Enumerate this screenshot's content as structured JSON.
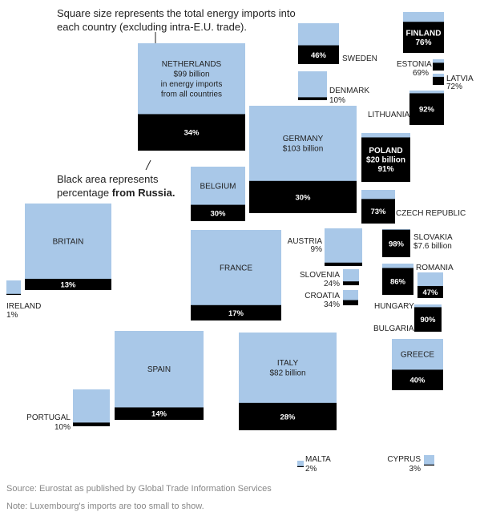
{
  "annotations": {
    "size_note": "Square size represents the total energy imports into each country (excluding intra-E.U. trade).",
    "black_note_prefix": "Black area represents percentage",
    "black_note_bold": "from Russia."
  },
  "source": "Source: Eurostat as published by Global Trade Information Services",
  "note": "Note: Luxembourg's imports are too small to show.",
  "colors": {
    "total": "#a9c8e8",
    "russia": "#000000",
    "label_on_dark": "#ffffff"
  },
  "chart_data": {
    "type": "treemap",
    "unit_value": "billion",
    "size_encoding": "square area proportional to total energy imports",
    "fill_encoding": "black fraction = share of imports from Russia",
    "countries": [
      {
        "name": "NETHERLANDS",
        "label_lines": [
          "NETHERLANDS",
          "$99 billion",
          "in energy imports",
          "from all countries"
        ],
        "total": 99,
        "russia_pct": 34,
        "pct_label": "34%"
      },
      {
        "name": "GERMANY",
        "label_lines": [
          "GERMANY",
          "$103 billion"
        ],
        "total": 103,
        "russia_pct": 30,
        "pct_label": "30%"
      },
      {
        "name": "ITALY",
        "label_lines": [
          "ITALY",
          "$82 billion"
        ],
        "total": 82,
        "russia_pct": 28,
        "pct_label": "28%"
      },
      {
        "name": "BRITAIN",
        "label_lines": [
          "BRITAIN"
        ],
        "russia_pct": 13,
        "pct_label": "13%"
      },
      {
        "name": "FRANCE",
        "label_lines": [
          "FRANCE"
        ],
        "russia_pct": 17,
        "pct_label": "17%"
      },
      {
        "name": "SPAIN",
        "label_lines": [
          "SPAIN"
        ],
        "russia_pct": 14,
        "pct_label": "14%"
      },
      {
        "name": "BELGIUM",
        "label_lines": [
          "BELGIUM"
        ],
        "russia_pct": 30,
        "pct_label": "30%"
      },
      {
        "name": "POLAND",
        "label_lines": [
          "POLAND",
          "$20 billion"
        ],
        "total": 20,
        "russia_pct": 91,
        "pct_label": "91%"
      },
      {
        "name": "FINLAND",
        "label_lines": [
          "FINLAND"
        ],
        "russia_pct": 76,
        "pct_label": "76%"
      },
      {
        "name": "SWEDEN",
        "label_lines": [
          "SWEDEN"
        ],
        "russia_pct": 46,
        "pct_label": "46%"
      },
      {
        "name": "DENMARK",
        "label_lines": [
          "DENMARK"
        ],
        "russia_pct": 10,
        "pct_label": "10%"
      },
      {
        "name": "ESTONIA",
        "label_lines": [
          "ESTONIA"
        ],
        "russia_pct": 69,
        "pct_label": "69%"
      },
      {
        "name": "LATVIA",
        "label_lines": [
          "LATVIA"
        ],
        "russia_pct": 72,
        "pct_label": "72%"
      },
      {
        "name": "LITHUANIA",
        "label_lines": [
          "LITHUANIA"
        ],
        "russia_pct": 92,
        "pct_label": "92%"
      },
      {
        "name": "CZECH REPUBLIC",
        "label_lines": [
          "CZECH REPUBLIC"
        ],
        "russia_pct": 73,
        "pct_label": "73%"
      },
      {
        "name": "SLOVAKIA",
        "label_lines": [
          "SLOVAKIA",
          "$7.6 billion"
        ],
        "total": 7.6,
        "russia_pct": 98,
        "pct_label": "98%"
      },
      {
        "name": "AUSTRIA",
        "label_lines": [
          "AUSTRIA"
        ],
        "russia_pct": 9,
        "pct_label": "9%"
      },
      {
        "name": "SLOVENIA",
        "label_lines": [
          "SLOVENIA"
        ],
        "russia_pct": 24,
        "pct_label": "24%"
      },
      {
        "name": "CROATIA",
        "label_lines": [
          "CROATIA"
        ],
        "russia_pct": 34,
        "pct_label": "34%"
      },
      {
        "name": "ROMANIA",
        "label_lines": [
          "ROMANIA"
        ],
        "russia_pct": 47,
        "pct_label": "47%"
      },
      {
        "name": "HUNGARY",
        "label_lines": [
          "HUNGARY"
        ],
        "russia_pct": 86,
        "pct_label": "86%"
      },
      {
        "name": "BULGARIA",
        "label_lines": [
          "BULGARIA"
        ],
        "russia_pct": 90,
        "pct_label": "90%"
      },
      {
        "name": "GREECE",
        "label_lines": [
          "GREECE"
        ],
        "russia_pct": 40,
        "pct_label": "40%"
      },
      {
        "name": "IRELAND",
        "label_lines": [
          "IRELAND"
        ],
        "russia_pct": 1,
        "pct_label": "1%"
      },
      {
        "name": "PORTUGAL",
        "label_lines": [
          "PORTUGAL"
        ],
        "russia_pct": 10,
        "pct_label": "10%"
      },
      {
        "name": "MALTA",
        "label_lines": [
          "MALTA"
        ],
        "russia_pct": 2,
        "pct_label": "2%"
      },
      {
        "name": "CYPRUS",
        "label_lines": [
          "CYPRUS"
        ],
        "russia_pct": 3,
        "pct_label": "3%"
      }
    ]
  }
}
